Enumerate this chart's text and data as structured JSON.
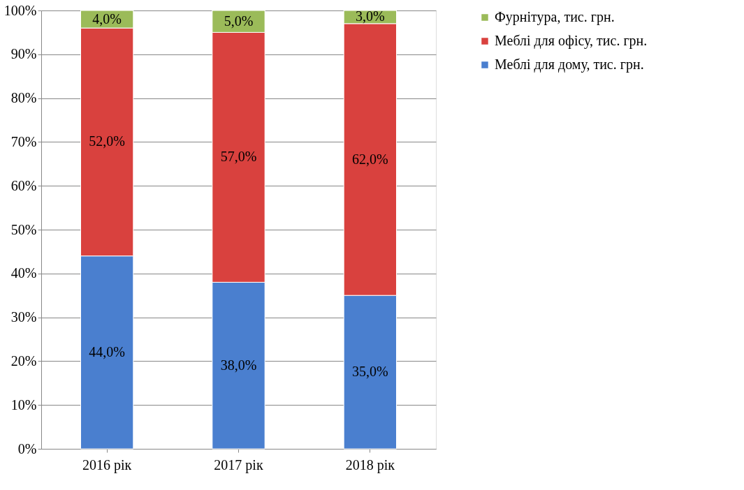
{
  "chart_data": {
    "type": "bar",
    "stacked": true,
    "categories": [
      "2016 рік",
      "2017 рік",
      "2018 рік"
    ],
    "series": [
      {
        "name": "Меблі для дому, тис. грн.",
        "color": "#4a7fcf",
        "values": [
          44,
          38,
          35
        ],
        "value_labels": [
          "44,0%",
          "38,0%",
          "35,0%"
        ]
      },
      {
        "name": "Меблі для офісу, тис. грн.",
        "color": "#d9413e",
        "values": [
          52,
          57,
          62
        ],
        "value_labels": [
          "52,0%",
          "57,0%",
          "62,0%"
        ]
      },
      {
        "name": "Фурнітура, тис. грн.",
        "color": "#9bbb59",
        "values": [
          4,
          5,
          3
        ],
        "value_labels": [
          "4,0%",
          "5,0%",
          "3,0%"
        ]
      }
    ],
    "ylim": [
      0,
      100
    ],
    "yticks": [
      {
        "value": 0,
        "label": "0%"
      },
      {
        "value": 10,
        "label": "10%"
      },
      {
        "value": 20,
        "label": "20%"
      },
      {
        "value": 30,
        "label": "30%"
      },
      {
        "value": 40,
        "label": "40%"
      },
      {
        "value": 50,
        "label": "50%"
      },
      {
        "value": 60,
        "label": "60%"
      },
      {
        "value": 70,
        "label": "70%"
      },
      {
        "value": 80,
        "label": "80%"
      },
      {
        "value": 90,
        "label": "90%"
      },
      {
        "value": 100,
        "label": "100%"
      }
    ],
    "grid": "y",
    "legend": "right"
  }
}
